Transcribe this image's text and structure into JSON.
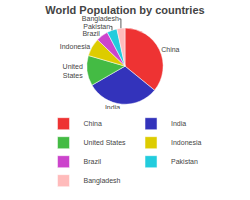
{
  "chart_data": {
    "type": "pie",
    "title": "World Population by countries",
    "categories": [
      "China",
      "India",
      "United States",
      "Indonesia",
      "Brazil",
      "Pakistan",
      "Bangladesh"
    ],
    "values": [
      21.0,
      18.0,
      7.5,
      4.5,
      3.0,
      2.5,
      2.0
    ],
    "colors": [
      "#EE3333",
      "#3333BB",
      "#44BB44",
      "#DDCC00",
      "#CC44CC",
      "#22CCDD",
      "#FFBBBB"
    ],
    "annotations": [
      "China",
      "India",
      "United\nStates",
      "Indonesia",
      "Brazil",
      "Pakistan",
      "Bangladesh"
    ],
    "legend": "bottom"
  }
}
